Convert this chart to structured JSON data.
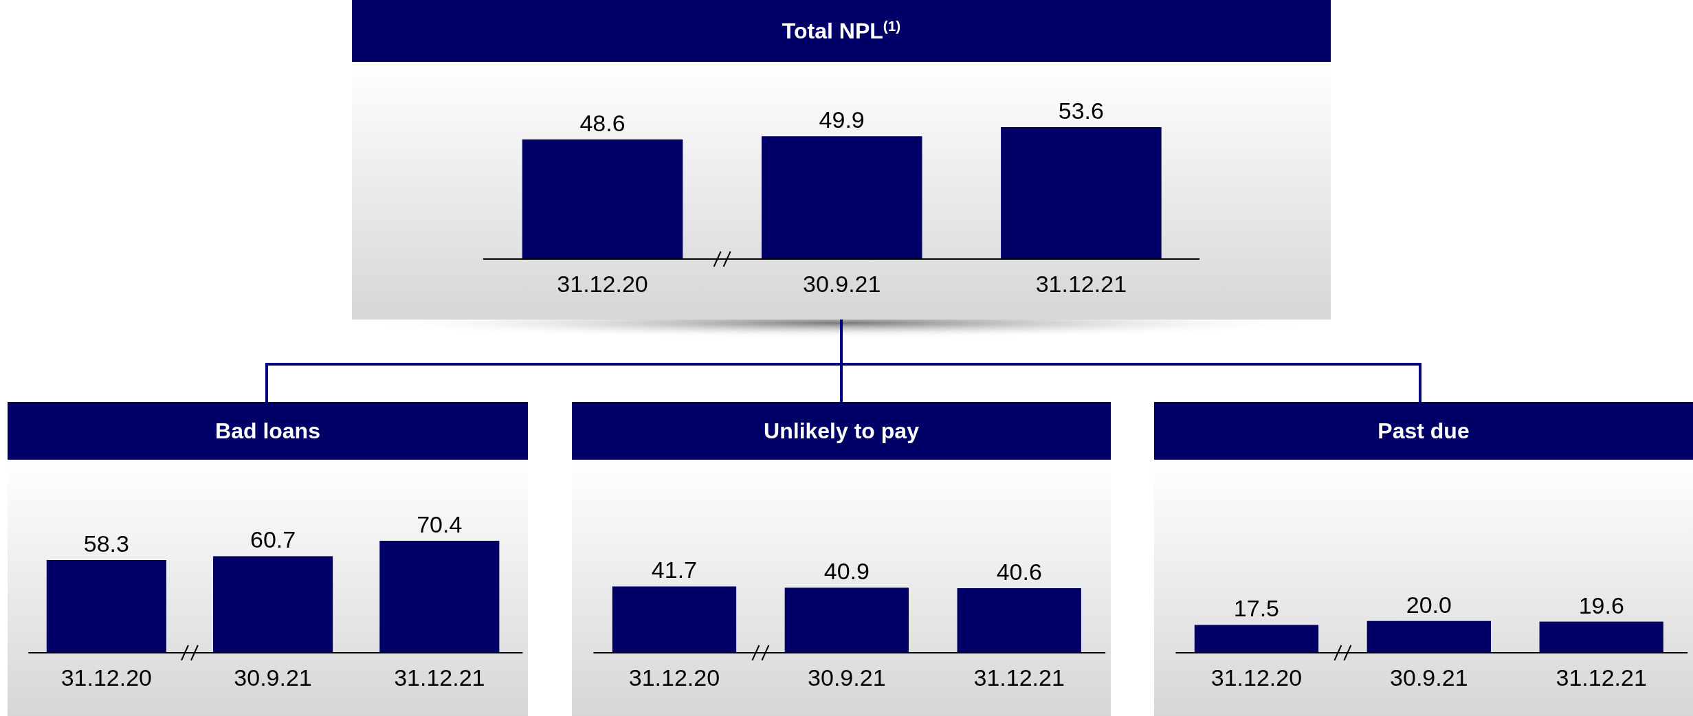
{
  "chart_data": [
    {
      "type": "bar",
      "title": "Total NPL$^{(1)}$",
      "categories": [
        "31.12.20",
        "30.9.21",
        "31.12.21"
      ],
      "values": [
        48.6,
        49.9,
        53.6
      ],
      "color": "#000066",
      "data_labels": true
    },
    {
      "type": "bar",
      "title": "Bad loans",
      "categories": [
        "31.12.20",
        "30.9.21",
        "31.12.21"
      ],
      "values": [
        58.3,
        60.7,
        70.4
      ],
      "color": "#000066",
      "data_labels": true
    },
    {
      "type": "bar",
      "title": "Unlikely to pay",
      "categories": [
        "31.12.20",
        "30.9.21",
        "31.12.21"
      ],
      "values": [
        41.7,
        40.9,
        40.6
      ],
      "color": "#000066",
      "data_labels": true
    },
    {
      "type": "bar",
      "title": "Past due",
      "categories": [
        "31.12.20",
        "30.9.21",
        "31.12.21"
      ],
      "values": [
        17.5,
        20.0,
        19.6
      ],
      "value_labels": [
        "17.5",
        "20.0",
        "19.6"
      ],
      "color": "#000066"
    }
  ]
}
